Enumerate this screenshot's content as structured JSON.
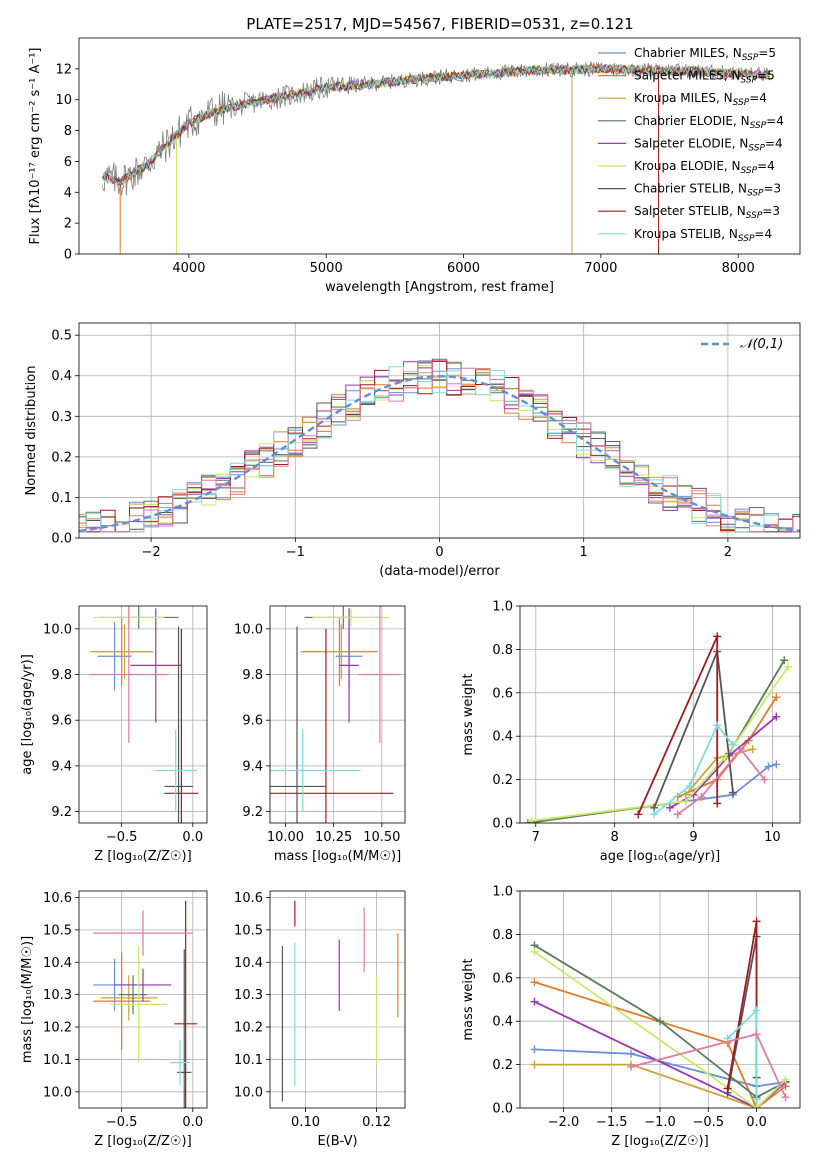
{
  "figure_title": "PLATE=2517, MJD=54567, FIBERID=0531, z=0.121",
  "colors": {
    "Chabrier MILES": "#6a8fd8",
    "Salpeter MILES": "#e07b2c",
    "Kroupa MILES": "#c9a23a",
    "Chabrier ELODIE": "#5a7a5a",
    "Salpeter ELODIE": "#9a35b5",
    "Kroupa ELODIE": "#c8e86a",
    "Chabrier STELIB": "#555555",
    "Salpeter STELIB": "#a01c1c",
    "Kroupa STELIB": "#7fdadf",
    "pink": "#e07aa8",
    "yellow-green": "#c7e05a",
    "data": "#7f7f7f"
  },
  "chart_data": [
    {
      "type": "line",
      "xlabel": "wavelength [Angstrom, rest frame]",
      "ylabel": "Flux [fλ10⁻¹⁷ erg cm⁻² s⁻¹ A⁻¹]",
      "xlim": [
        3200,
        8450
      ],
      "ylim": [
        0,
        14
      ],
      "xticks": [
        4000,
        5000,
        6000,
        7000,
        8000
      ],
      "yticks": [
        0,
        2,
        4,
        6,
        8,
        10,
        12
      ],
      "grid": false,
      "legend_position": "top-right",
      "legend": [
        "Chabrier MILES, N_SSP=5",
        "Salpeter MILES, N_SSP=5",
        "Kroupa MILES, N_SSP=4",
        "Chabrier ELODIE, N_SSP=4",
        "Salpeter ELODIE, N_SSP=4",
        "Kroupa ELODIE, N_SSP=4",
        "Chabrier STELIB, N_SSP=3",
        "Salpeter STELIB, N_SSP=3",
        "Kroupa STELIB, N_SSP=4"
      ],
      "continuum": {
        "x": [
          3370,
          3500,
          3700,
          3850,
          4000,
          4200,
          4500,
          4800,
          5000,
          5300,
          5600,
          6000,
          6500,
          7000,
          7500,
          8000,
          8230
        ],
        "y": [
          5.0,
          4.7,
          5.8,
          7.2,
          8.5,
          9.3,
          9.9,
          10.4,
          10.8,
          11.0,
          11.3,
          11.6,
          11.9,
          12.0,
          11.9,
          11.7,
          11.6
        ]
      }
    },
    {
      "type": "step",
      "xlabel": "(data-model)/error",
      "ylabel": "Normed distribution",
      "xlim": [
        -2.5,
        2.5
      ],
      "ylim": [
        0,
        0.53
      ],
      "xticks": [
        -2,
        -1,
        0,
        1,
        2
      ],
      "yticks": [
        0.0,
        0.1,
        0.2,
        0.3,
        0.4,
        0.5
      ],
      "grid": true,
      "legend_position": "top-right",
      "legend": [
        "𝒩(0,1)"
      ],
      "bin_width": 0.1
    },
    {
      "type": "errorbar",
      "xlabel": "Z [log₁₀(Z/Z☉)]",
      "ylabel": "age  [log₁₀(age/yr)]",
      "xlim": [
        -0.8,
        0.1
      ],
      "ylim": [
        9.15,
        10.1
      ],
      "xticks": [
        -0.5,
        0.0
      ],
      "yticks": [
        9.2,
        9.4,
        9.6,
        9.8,
        10.0
      ],
      "points": [
        {
          "model": "Chabrier MILES",
          "x": -0.55,
          "xerr": 0.12,
          "y": 9.88,
          "yerr": 0.15
        },
        {
          "model": "Salpeter MILES",
          "x": -0.5,
          "xerr": 0.22,
          "y": 9.9,
          "yerr": 0.15
        },
        {
          "model": "Kroupa MILES",
          "x": -0.48,
          "xerr": 0.2,
          "y": 9.9,
          "yerr": 0.12
        },
        {
          "model": "Chabrier ELODIE",
          "x": -0.38,
          "xerr": 0.28,
          "y": 10.05,
          "yerr": 0.05
        },
        {
          "model": "Salpeter ELODIE",
          "x": -0.26,
          "xerr": 0.18,
          "y": 9.84,
          "yerr": 0.25
        },
        {
          "model": "Kroupa ELODIE",
          "x": -0.45,
          "xerr": 0.25,
          "y": 10.05,
          "yerr": 0.04
        },
        {
          "model": "Chabrier STELIB",
          "x": -0.1,
          "xerr": 0.1,
          "y": 9.31,
          "yerr": 0.7
        },
        {
          "model": "Salpeter STELIB",
          "x": -0.08,
          "xerr": 0.12,
          "y": 9.28,
          "yerr": 0.72
        },
        {
          "model": "Kroupa STELIB",
          "x": -0.12,
          "xerr": 0.15,
          "y": 9.38,
          "yerr": 0.18
        },
        {
          "model": "pink",
          "x": -0.45,
          "xerr": 0.28,
          "y": 9.8,
          "yerr": 0.3
        }
      ]
    },
    {
      "type": "errorbar",
      "xlabel": "mass [log₁₀(M/M☉)]",
      "ylabel": "",
      "xlim": [
        9.92,
        10.62
      ],
      "ylim": [
        9.15,
        10.1
      ],
      "xticks": [
        10.0,
        10.25,
        10.5
      ],
      "yticks": [
        9.2,
        9.4,
        9.6,
        9.8,
        10.0
      ],
      "points": [
        {
          "model": "Chabrier MILES",
          "x": 10.33,
          "xerr": 0.07,
          "y": 9.88,
          "yerr": 0.15
        },
        {
          "model": "Salpeter MILES",
          "x": 10.28,
          "xerr": 0.2,
          "y": 9.9,
          "yerr": 0.15
        },
        {
          "model": "Kroupa MILES",
          "x": 10.29,
          "xerr": 0.09,
          "y": 9.9,
          "yerr": 0.12
        },
        {
          "model": "Chabrier ELODIE",
          "x": 10.3,
          "xerr": 0.2,
          "y": 10.05,
          "yerr": 0.05
        },
        {
          "model": "Salpeter ELODIE",
          "x": 10.33,
          "xerr": 0.05,
          "y": 9.84,
          "yerr": 0.25
        },
        {
          "model": "Kroupa ELODIE",
          "x": 10.34,
          "xerr": 0.2,
          "y": 10.05,
          "yerr": 0.04
        },
        {
          "model": "Chabrier STELIB",
          "x": 10.06,
          "xerr": 0.15,
          "y": 9.31,
          "yerr": 0.7
        },
        {
          "model": "Salpeter STELIB",
          "x": 10.21,
          "xerr": 0.35,
          "y": 9.28,
          "yerr": 0.72
        },
        {
          "model": "Kroupa STELIB",
          "x": 10.09,
          "xerr": 0.3,
          "y": 9.38,
          "yerr": 0.18
        },
        {
          "model": "pink",
          "x": 10.49,
          "xerr": 0.11,
          "y": 9.8,
          "yerr": 0.3
        }
      ]
    },
    {
      "type": "line",
      "xlabel": "age  [log₁₀(age/yr)]",
      "ylabel": "mass weight",
      "xlim": [
        6.8,
        10.35
      ],
      "ylim": [
        0,
        1.0
      ],
      "xticks": [
        7,
        8,
        9,
        10
      ],
      "yticks": [
        0.0,
        0.2,
        0.4,
        0.6,
        0.8,
        1.0
      ],
      "grid": true,
      "series": [
        {
          "model": "Chabrier MILES",
          "x": [
            8.9,
            9.5,
            9.95,
            10.05
          ],
          "y": [
            0.1,
            0.13,
            0.26,
            0.27
          ]
        },
        {
          "model": "Salpeter MILES",
          "x": [
            8.8,
            9.3,
            9.7,
            10.05
          ],
          "y": [
            0.12,
            0.2,
            0.38,
            0.58
          ]
        },
        {
          "model": "Kroupa MILES",
          "x": [
            8.9,
            9.3,
            9.75
          ],
          "y": [
            0.13,
            0.3,
            0.34
          ]
        },
        {
          "model": "Chabrier ELODIE",
          "x": [
            6.9,
            8.9,
            9.45,
            10.15
          ],
          "y": [
            0.0,
            0.1,
            0.32,
            0.75
          ]
        },
        {
          "model": "Salpeter ELODIE",
          "x": [
            8.7,
            9.0,
            9.45,
            10.05
          ],
          "y": [
            0.07,
            0.13,
            0.31,
            0.49
          ]
        },
        {
          "model": "Kroupa ELODIE",
          "x": [
            6.95,
            8.9,
            9.4,
            10.2
          ],
          "y": [
            0.01,
            0.1,
            0.3,
            0.72
          ]
        },
        {
          "model": "Chabrier STELIB",
          "x": [
            8.5,
            9.3,
            9.5
          ],
          "y": [
            0.07,
            0.79,
            0.14
          ]
        },
        {
          "model": "Salpeter STELIB",
          "x": [
            8.3,
            9.3,
            9.3
          ],
          "y": [
            0.04,
            0.86,
            0.09
          ]
        },
        {
          "model": "Kroupa STELIB",
          "x": [
            8.5,
            8.95,
            9.3,
            9.5
          ],
          "y": [
            0.04,
            0.17,
            0.45,
            0.36
          ]
        },
        {
          "model": "pink",
          "x": [
            8.8,
            9.1,
            9.6,
            9.9
          ],
          "y": [
            0.04,
            0.12,
            0.34,
            0.2
          ]
        }
      ]
    },
    {
      "type": "errorbar",
      "xlabel": "Z [log₁₀(Z/Z☉)]",
      "ylabel": "mass [log₁₀(M/M☉)]",
      "xlim": [
        -0.8,
        0.1
      ],
      "ylim": [
        9.95,
        10.62
      ],
      "xticks": [
        -0.5,
        0.0
      ],
      "yticks": [
        10.0,
        10.1,
        10.2,
        10.3,
        10.4,
        10.5,
        10.6
      ],
      "points": [
        {
          "model": "Chabrier MILES",
          "x": -0.55,
          "xerr": 0.15,
          "y": 10.33,
          "yerr": 0.08
        },
        {
          "model": "Salpeter MILES",
          "x": -0.5,
          "xerr": 0.2,
          "y": 10.28,
          "yerr": 0.15
        },
        {
          "model": "Kroupa MILES",
          "x": -0.45,
          "xerr": 0.2,
          "y": 10.29,
          "yerr": 0.07
        },
        {
          "model": "Chabrier ELODIE",
          "x": -0.42,
          "xerr": 0.1,
          "y": 10.3,
          "yerr": 0.06
        },
        {
          "model": "Salpeter ELODIE",
          "x": -0.35,
          "xerr": 0.2,
          "y": 10.33,
          "yerr": 0.05
        },
        {
          "model": "Kroupa ELODIE",
          "x": -0.38,
          "xerr": 0.2,
          "y": 10.27,
          "yerr": 0.18
        },
        {
          "model": "Chabrier STELIB",
          "x": -0.06,
          "xerr": 0.05,
          "y": 10.06,
          "yerr": 0.38
        },
        {
          "model": "Salpeter STELIB",
          "x": -0.05,
          "xerr": 0.08,
          "y": 10.21,
          "yerr": 0.38
        },
        {
          "model": "Kroupa STELIB",
          "x": -0.09,
          "xerr": 0.07,
          "y": 10.09,
          "yerr": 0.07
        },
        {
          "model": "pink",
          "x": -0.35,
          "xerr": 0.35,
          "y": 10.49,
          "yerr": 0.07
        }
      ]
    },
    {
      "type": "errorbar",
      "xlabel": "E(B-V)",
      "ylabel": "",
      "xlim": [
        0.09,
        0.128
      ],
      "ylim": [
        9.95,
        10.62
      ],
      "xticks": [
        0.1,
        0.12
      ],
      "yticks": [
        10.0,
        10.1,
        10.2,
        10.3,
        10.4,
        10.5,
        10.6
      ],
      "points": [
        {
          "model": "Chabrier STELIB",
          "x": 0.0935,
          "y": 10.21,
          "yerr": 0.24
        },
        {
          "model": "Kroupa STELIB",
          "x": 0.097,
          "y": 10.24,
          "yerr": 0.22
        },
        {
          "model": "Salpeter STELIB",
          "x": 0.097,
          "y": 10.55,
          "yerr": 0.04
        },
        {
          "model": "Salpeter ELODIE",
          "x": 0.1095,
          "y": 10.36,
          "yerr": 0.11
        },
        {
          "model": "pink",
          "x": 0.1165,
          "y": 10.47,
          "yerr": 0.1
        },
        {
          "model": "Kroupa ELODIE",
          "x": 0.12,
          "y": 10.22,
          "yerr": 0.14
        },
        {
          "model": "Salpeter MILES",
          "x": 0.126,
          "y": 10.36,
          "yerr": 0.13
        }
      ]
    },
    {
      "type": "line",
      "xlabel": "Z [log₁₀(Z/Z☉)]",
      "ylabel": "mass weight",
      "xlim": [
        -2.45,
        0.45
      ],
      "ylim": [
        0,
        1.0
      ],
      "xticks": [
        -2.0,
        -1.5,
        -1.0,
        -0.5,
        0.0
      ],
      "yticks": [
        0.0,
        0.2,
        0.4,
        0.6,
        0.8,
        1.0
      ],
      "grid": true,
      "series": [
        {
          "model": "Chabrier MILES",
          "x": [
            -2.3,
            -1.3,
            0.0,
            0.3
          ],
          "y": [
            0.27,
            0.25,
            0.1,
            0.12
          ]
        },
        {
          "model": "Salpeter MILES",
          "x": [
            -2.3,
            -0.3,
            0.0,
            0.3
          ],
          "y": [
            0.58,
            0.3,
            0.0,
            0.1
          ]
        },
        {
          "model": "Kroupa MILES",
          "x": [
            -2.3,
            -1.3,
            0.0,
            0.3
          ],
          "y": [
            0.2,
            0.2,
            0.0,
            0.12
          ]
        },
        {
          "model": "Chabrier ELODIE",
          "x": [
            -2.3,
            -1.0,
            0.0,
            0.3
          ],
          "y": [
            0.75,
            0.4,
            0.05,
            0.12
          ]
        },
        {
          "model": "Salpeter ELODIE",
          "x": [
            -2.3,
            0.0,
            0.3
          ],
          "y": [
            0.49,
            0.0,
            0.12
          ]
        },
        {
          "model": "Kroupa ELODIE",
          "x": [
            -2.3,
            0.0,
            0.3
          ],
          "y": [
            0.72,
            0.0,
            0.13
          ]
        },
        {
          "model": "Chabrier STELIB",
          "x": [
            -0.3,
            0.0,
            0.0
          ],
          "y": [
            0.07,
            0.79,
            0.14
          ]
        },
        {
          "model": "Salpeter STELIB",
          "x": [
            -0.3,
            0.0,
            0.0
          ],
          "y": [
            0.09,
            0.86,
            0.04
          ]
        },
        {
          "model": "Kroupa STELIB",
          "x": [
            -0.3,
            0.0,
            0.0
          ],
          "y": [
            0.32,
            0.45,
            0.04
          ]
        },
        {
          "model": "pink",
          "x": [
            -1.3,
            0.0,
            0.3
          ],
          "y": [
            0.19,
            0.34,
            0.05
          ]
        }
      ]
    }
  ]
}
